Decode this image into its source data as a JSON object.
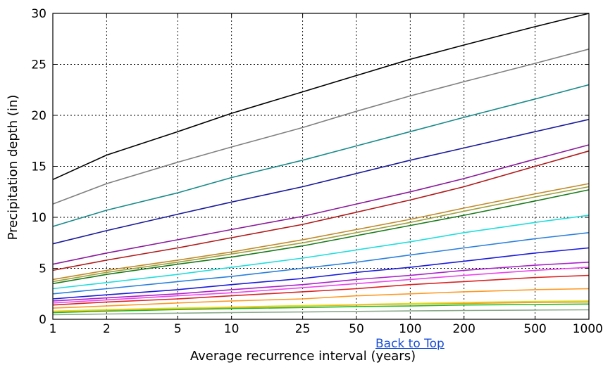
{
  "chart_data": {
    "type": "line",
    "xscale": "log",
    "xlim": [
      1,
      1000
    ],
    "ylim": [
      0,
      30
    ],
    "x": [
      1,
      2,
      5,
      10,
      25,
      50,
      100,
      200,
      500,
      1000
    ],
    "x_tick_labels": [
      "1",
      "2",
      "5",
      "10",
      "25",
      "50",
      "100",
      "200",
      "500",
      "1000"
    ],
    "y_ticks": [
      0,
      5,
      10,
      15,
      20,
      25,
      30
    ],
    "xlabel": "Average recurrence interval (years)",
    "ylabel": "Precipitation depth (in)",
    "grid": true,
    "series": [
      {
        "color": "#000000",
        "values": [
          13.7,
          16.1,
          18.4,
          20.2,
          22.3,
          23.9,
          25.5,
          26.9,
          28.7,
          30.0
        ]
      },
      {
        "color": "#808080",
        "values": [
          11.3,
          13.3,
          15.4,
          16.9,
          18.8,
          20.4,
          21.9,
          23.3,
          25.1,
          26.5
        ]
      },
      {
        "color": "#1a8a8a",
        "values": [
          9.1,
          10.7,
          12.4,
          13.9,
          15.6,
          17.0,
          18.4,
          19.8,
          21.6,
          23.0
        ]
      },
      {
        "color": "#1a1a9a",
        "values": [
          7.4,
          8.7,
          10.3,
          11.5,
          13.0,
          14.3,
          15.6,
          16.8,
          18.4,
          19.6
        ]
      },
      {
        "color": "#8a1a9a",
        "values": [
          5.4,
          6.5,
          7.8,
          8.8,
          10.1,
          11.3,
          12.5,
          13.8,
          15.7,
          17.1
        ]
      },
      {
        "color": "#b01a1a",
        "values": [
          4.8,
          5.8,
          7.0,
          8.0,
          9.3,
          10.5,
          11.7,
          13.0,
          15.0,
          16.5
        ]
      },
      {
        "color": "#c08a2a",
        "values": [
          3.9,
          4.8,
          5.8,
          6.6,
          7.8,
          8.8,
          9.8,
          10.9,
          12.3,
          13.3
        ]
      },
      {
        "color": "#a0a040",
        "values": [
          3.7,
          4.6,
          5.6,
          6.4,
          7.5,
          8.5,
          9.5,
          10.6,
          12.0,
          13.0
        ]
      },
      {
        "color": "#1a7a1a",
        "values": [
          3.5,
          4.4,
          5.4,
          6.1,
          7.2,
          8.2,
          9.2,
          10.2,
          11.6,
          12.7
        ]
      },
      {
        "color": "#22dddd",
        "values": [
          3.0,
          3.6,
          4.4,
          5.1,
          6.0,
          6.8,
          7.6,
          8.5,
          9.5,
          10.2
        ]
      },
      {
        "color": "#2a80dd",
        "values": [
          2.5,
          3.0,
          3.7,
          4.2,
          5.0,
          5.6,
          6.3,
          7.0,
          7.9,
          8.5
        ]
      },
      {
        "color": "#1a1add",
        "values": [
          2.0,
          2.4,
          2.9,
          3.4,
          4.0,
          4.6,
          5.1,
          5.7,
          6.5,
          7.0
        ]
      },
      {
        "color": "#aa22cc",
        "values": [
          1.8,
          2.1,
          2.5,
          2.9,
          3.4,
          3.9,
          4.3,
          4.8,
          5.3,
          5.6
        ]
      },
      {
        "color": "#ee44ee",
        "values": [
          1.6,
          1.9,
          2.3,
          2.6,
          3.1,
          3.5,
          3.9,
          4.3,
          4.8,
          5.1
        ]
      },
      {
        "color": "#dd2222",
        "values": [
          1.4,
          1.7,
          2.0,
          2.3,
          2.7,
          3.0,
          3.4,
          3.7,
          4.1,
          4.3
        ]
      },
      {
        "color": "#ff9922",
        "values": [
          1.1,
          1.3,
          1.6,
          1.8,
          2.0,
          2.3,
          2.5,
          2.7,
          2.9,
          3.0
        ]
      },
      {
        "color": "#dddd22",
        "values": [
          0.8,
          0.95,
          1.1,
          1.2,
          1.35,
          1.45,
          1.55,
          1.65,
          1.75,
          1.8
        ]
      },
      {
        "color": "#ee9922",
        "values": [
          0.75,
          0.9,
          1.05,
          1.15,
          1.3,
          1.4,
          1.5,
          1.55,
          1.65,
          1.7
        ]
      },
      {
        "color": "#22bb22",
        "values": [
          0.65,
          0.8,
          0.95,
          1.05,
          1.15,
          1.25,
          1.3,
          1.4,
          1.45,
          1.5
        ]
      },
      {
        "color": "#8aaa8a",
        "values": [
          0.45,
          0.52,
          0.6,
          0.66,
          0.72,
          0.77,
          0.82,
          0.86,
          0.9,
          0.93
        ]
      }
    ]
  },
  "nav": {
    "back_to_top": "Back to Top"
  }
}
